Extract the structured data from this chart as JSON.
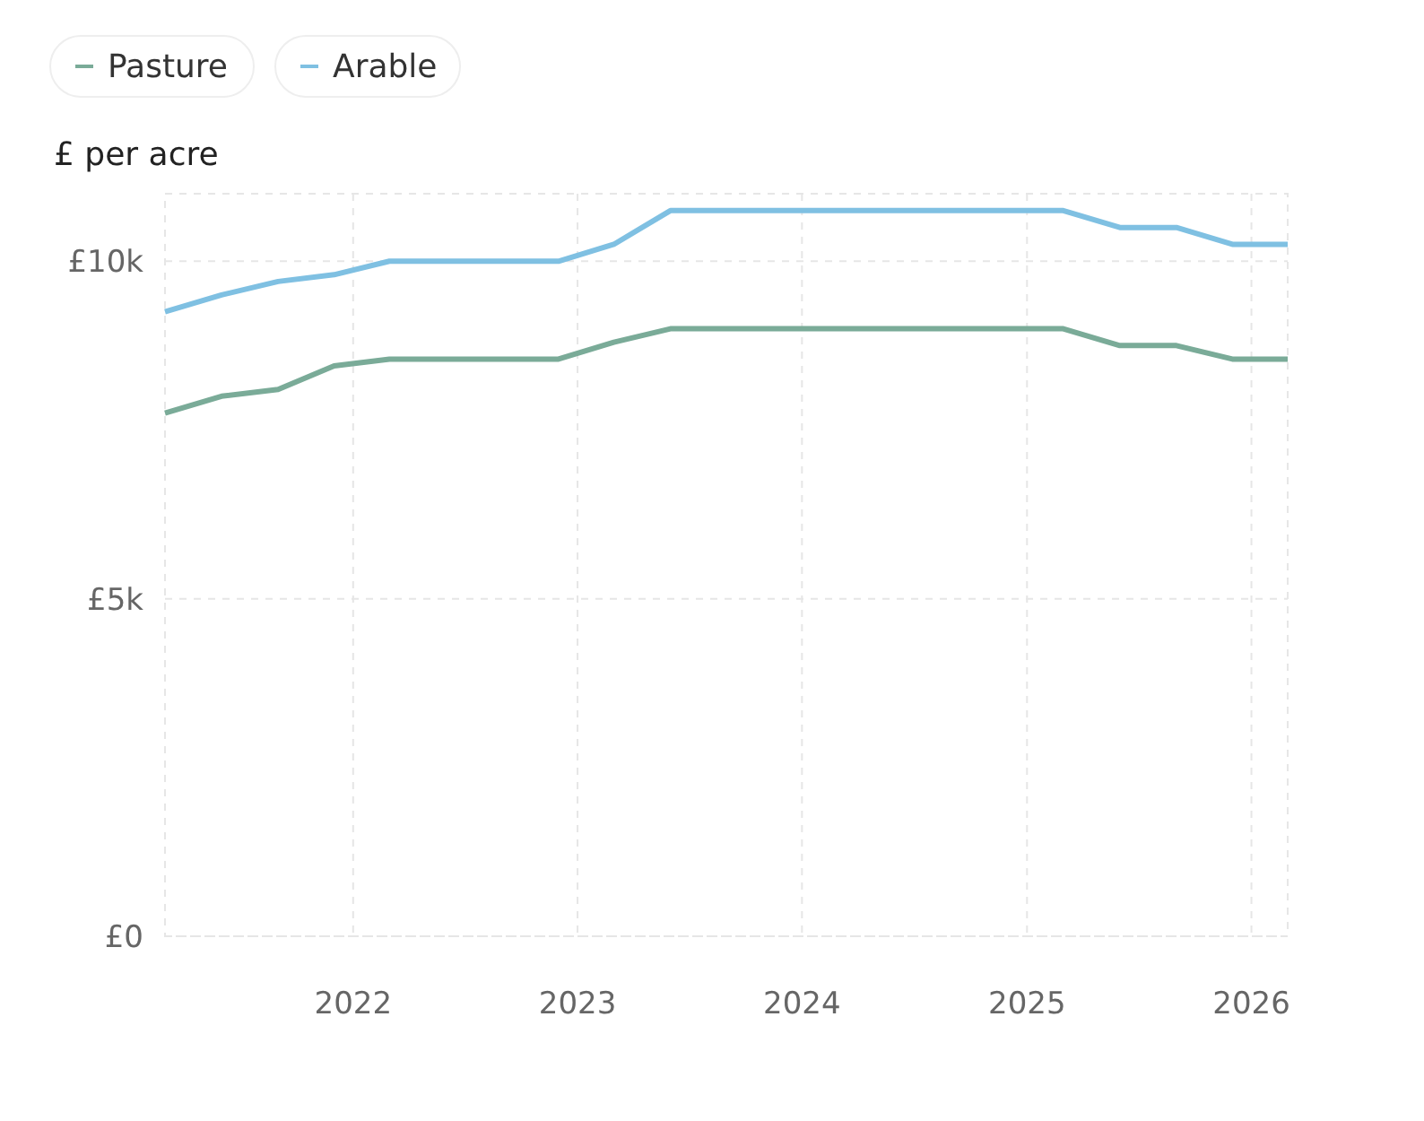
{
  "chart_data": {
    "type": "line",
    "ylabel": "£ per acre",
    "x": [
      "2021-03",
      "2021-06",
      "2021-09",
      "2021-12",
      "2022-03",
      "2022-06",
      "2022-09",
      "2022-12",
      "2023-03",
      "2023-06",
      "2023-09",
      "2023-12",
      "2024-03",
      "2024-06",
      "2024-09",
      "2024-12",
      "2025-03",
      "2025-06",
      "2025-09",
      "2025-12",
      "2026-03"
    ],
    "series": [
      {
        "name": "Pasture",
        "color": "#7aab98",
        "values": [
          7750,
          8000,
          8100,
          8450,
          8550,
          8550,
          8550,
          8550,
          8800,
          9000,
          9000,
          9000,
          9000,
          9000,
          9000,
          9000,
          9000,
          8750,
          8750,
          8550,
          8550
        ]
      },
      {
        "name": "Arable",
        "color": "#7fc0e2",
        "values": [
          9250,
          9500,
          9700,
          9800,
          10000,
          10000,
          10000,
          10000,
          10250,
          10750,
          10750,
          10750,
          10750,
          10750,
          10750,
          10750,
          10750,
          10500,
          10500,
          10250,
          10250
        ]
      }
    ],
    "xlim": [
      "2021-03",
      "2026-03"
    ],
    "xticks": [
      {
        "value": "2022",
        "label": "2022"
      },
      {
        "value": "2023",
        "label": "2023"
      },
      {
        "value": "2024",
        "label": "2024"
      },
      {
        "value": "2025",
        "label": "2025"
      },
      {
        "value": "2026",
        "label": "2026"
      }
    ],
    "ylim": [
      0,
      11000
    ],
    "yticks": [
      {
        "value": 0,
        "label": "£0"
      },
      {
        "value": 5000,
        "label": "£5k"
      },
      {
        "value": 10000,
        "label": "£10k"
      }
    ],
    "grid": true,
    "legend": "top left",
    "marker": "none",
    "line_style": "solid"
  }
}
